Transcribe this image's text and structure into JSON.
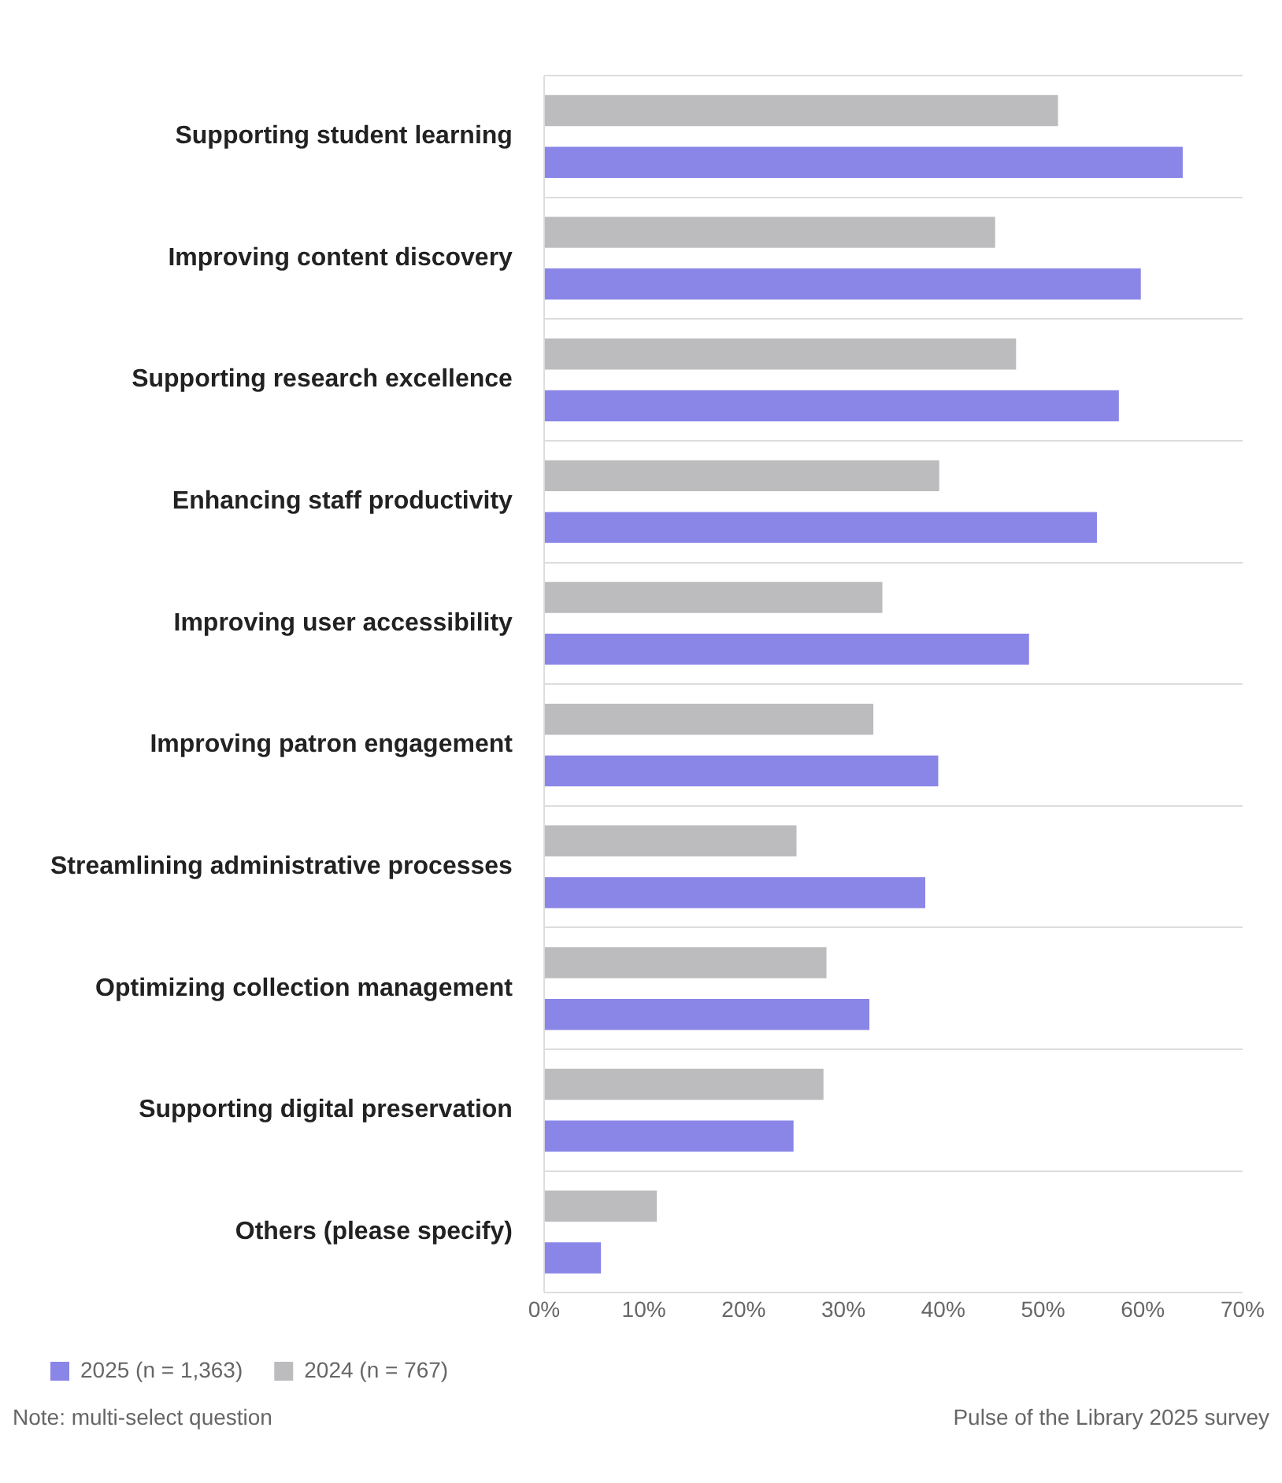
{
  "chart_data": {
    "type": "bar",
    "orientation": "horizontal",
    "categories": [
      "Supporting student learning",
      "Improving content discovery",
      "Supporting research excellence",
      "Enhancing staff productivity",
      "Improving user accessibility",
      "Improving patron engagement",
      "Streamlining administrative processes",
      "Optimizing collection management",
      "Supporting digital preservation",
      "Others (please specify)"
    ],
    "series": [
      {
        "name": "2024 (n = 767)",
        "color": "#bcbcbe",
        "values": [
          51.5,
          45.2,
          47.3,
          39.6,
          33.9,
          33.0,
          25.3,
          28.3,
          28.0,
          11.3
        ]
      },
      {
        "name": "2025 (n = 1,363)",
        "color": "#8a86e8",
        "values": [
          64.0,
          59.8,
          57.6,
          55.4,
          48.6,
          39.5,
          38.2,
          32.6,
          25.0,
          5.7
        ]
      }
    ],
    "xlim": [
      0,
      70
    ],
    "xticks": [
      {
        "value": 0,
        "label": "0%"
      },
      {
        "value": 10,
        "label": "10%"
      },
      {
        "value": 20,
        "label": "20%"
      },
      {
        "value": 30,
        "label": "30%"
      },
      {
        "value": 40,
        "label": "40%"
      },
      {
        "value": 50,
        "label": "50%"
      },
      {
        "value": 60,
        "label": "60%"
      },
      {
        "value": 70,
        "label": "70%"
      }
    ],
    "grid": "y",
    "legend": "bottom left",
    "annotations": [
      "Note: multi-select question",
      "Pulse of the Library 2025 survey"
    ]
  }
}
